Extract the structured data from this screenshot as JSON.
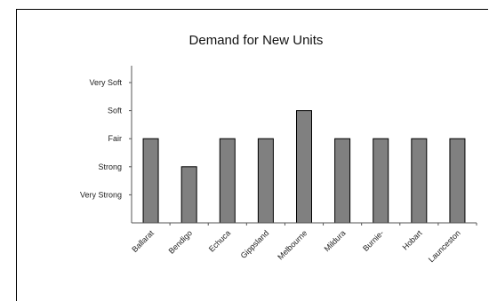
{
  "chart_data": {
    "type": "bar",
    "title": "Demand for New Units",
    "xlabel": "",
    "ylabel": "",
    "categories": [
      "Ballarat",
      "Bendigo",
      "Echuca",
      "Gippsland",
      "Melbourne",
      "Mildura",
      "Burnie-",
      "Hobart",
      "Launceston"
    ],
    "values": [
      3,
      2,
      3,
      3,
      4,
      3,
      3,
      3,
      3
    ],
    "y_tick_labels": [
      "Very Strong",
      "Strong",
      "Fair",
      "Soft",
      "Very Soft"
    ],
    "ylim": [
      0,
      5
    ],
    "grid": false,
    "legend": "none",
    "colors": {
      "bar_fill": "#808080",
      "bar_stroke": "#000000",
      "axis": "#555555"
    }
  }
}
